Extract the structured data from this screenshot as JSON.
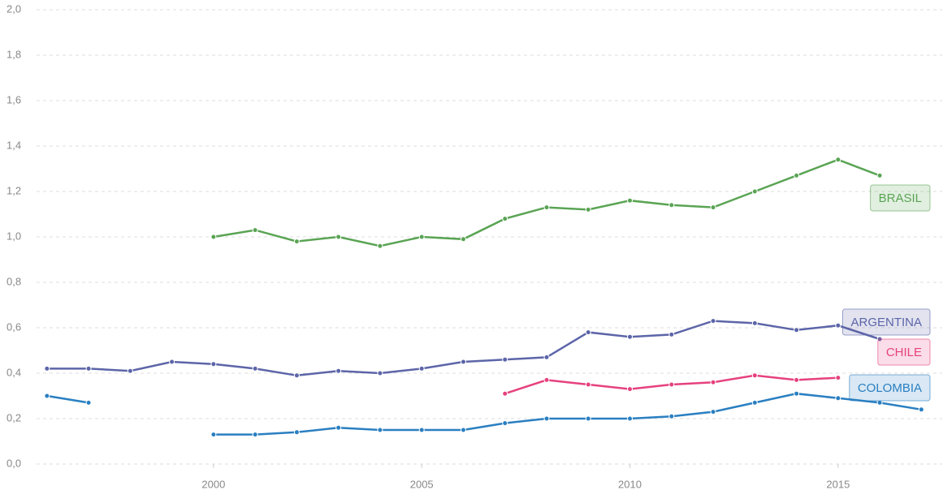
{
  "chart_data": {
    "type": "line",
    "x": [
      1996,
      1997,
      1998,
      1999,
      2000,
      2001,
      2002,
      2003,
      2004,
      2005,
      2006,
      2007,
      2008,
      2009,
      2010,
      2011,
      2012,
      2013,
      2014,
      2015,
      2016,
      2017
    ],
    "xlim": [
      1995.75,
      2017.5
    ],
    "xticks": [
      2000,
      2005,
      2010,
      2015
    ],
    "ylim": [
      0,
      2.0
    ],
    "yticks": [
      {
        "value": 0,
        "label": "0,0"
      },
      {
        "value": 0.2,
        "label": "0,2"
      },
      {
        "value": 0.4,
        "label": "0,4"
      },
      {
        "value": 0.6,
        "label": "0,6"
      },
      {
        "value": 0.8,
        "label": "0,8"
      },
      {
        "value": 1.0,
        "label": "1,0"
      },
      {
        "value": 1.2,
        "label": "1,2"
      },
      {
        "value": 1.4,
        "label": "1,4"
      },
      {
        "value": 1.6,
        "label": "1,6"
      },
      {
        "value": 1.8,
        "label": "1,8"
      },
      {
        "value": 2.0,
        "label": "2,0"
      }
    ],
    "grid": true,
    "series": [
      {
        "name": "BRASIL",
        "color": "#5aa454",
        "values": [
          null,
          null,
          null,
          null,
          1.0,
          1.03,
          0.98,
          1.0,
          0.96,
          1.0,
          0.99,
          1.08,
          1.13,
          1.12,
          1.16,
          1.14,
          1.13,
          1.2,
          1.27,
          1.34,
          1.27,
          null
        ]
      },
      {
        "name": "ARGENTINA",
        "color": "#5c65a8",
        "values": [
          0.42,
          0.42,
          0.41,
          0.45,
          0.44,
          0.42,
          0.39,
          0.41,
          0.4,
          0.42,
          0.45,
          0.46,
          0.47,
          0.58,
          0.56,
          0.57,
          0.63,
          0.62,
          0.59,
          0.61,
          0.55,
          null
        ]
      },
      {
        "name": "CHILE",
        "color": "#e6417e",
        "values": [
          null,
          null,
          null,
          null,
          null,
          null,
          null,
          null,
          null,
          null,
          null,
          0.31,
          0.37,
          0.35,
          0.33,
          0.35,
          0.36,
          0.39,
          0.37,
          0.38,
          null,
          null
        ]
      },
      {
        "name": "COLOMBIA",
        "color": "#2a7fc1",
        "values": [
          0.3,
          0.27,
          null,
          null,
          0.13,
          0.13,
          0.14,
          0.16,
          0.15,
          0.15,
          0.15,
          0.18,
          0.2,
          0.2,
          0.2,
          0.21,
          0.23,
          0.27,
          0.31,
          0.29,
          0.27,
          0.24
        ]
      }
    ]
  }
}
